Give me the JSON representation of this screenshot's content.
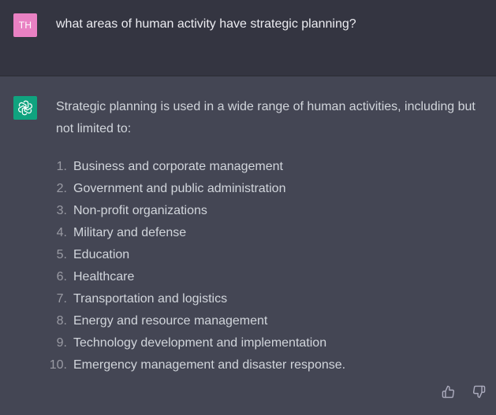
{
  "colors": {
    "user_bg": "#343541",
    "assistant_bg": "#444654",
    "user_avatar_bg": "#e981c3",
    "assistant_avatar_bg": "#10a37f",
    "text": "#d1d5db",
    "icon": "#acacbe"
  },
  "user_message": {
    "avatar_initials": "TH",
    "text": "what areas of human activity have strategic planning?"
  },
  "assistant_message": {
    "avatar_icon": "openai-logo-icon",
    "intro": "Strategic planning is used in a wide range of human activities, including but not limited to:",
    "items": [
      {
        "number": "1.",
        "text": "Business and corporate management"
      },
      {
        "number": "2.",
        "text": "Government and public administration"
      },
      {
        "number": "3.",
        "text": "Non-profit organizations"
      },
      {
        "number": "4.",
        "text": "Military and defense"
      },
      {
        "number": "5.",
        "text": "Education"
      },
      {
        "number": "6.",
        "text": "Healthcare"
      },
      {
        "number": "7.",
        "text": "Transportation and logistics"
      },
      {
        "number": "8.",
        "text": "Energy and resource management"
      },
      {
        "number": "9.",
        "text": "Technology development and implementation"
      },
      {
        "number": "10.",
        "text": "Emergency management and disaster response."
      }
    ]
  },
  "feedback": {
    "like_icon": "thumbs-up-icon",
    "dislike_icon": "thumbs-down-icon"
  }
}
